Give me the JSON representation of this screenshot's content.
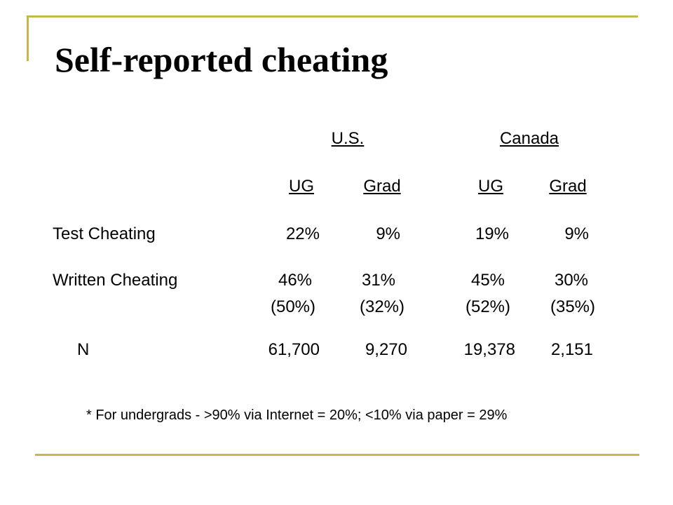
{
  "slide": {
    "title": "Self-reported cheating",
    "accent_color": "#c8b74a"
  },
  "table": {
    "groups": [
      "U.S.",
      "Canada"
    ],
    "subheaders": [
      "UG",
      "Grad",
      "UG",
      "Grad"
    ],
    "rows": [
      {
        "label": "Test Cheating",
        "values": [
          "22%",
          "9%",
          "19%",
          "9%"
        ]
      },
      {
        "label": "Written Cheating",
        "values": [
          "46%",
          "31%",
          "45%",
          "30%"
        ],
        "sub_values": [
          "(50%)",
          "(32%)",
          "(52%)",
          "(35%)"
        ]
      },
      {
        "label": "N",
        "values": [
          "61,700",
          "9,270",
          "19,378",
          "2,151"
        ]
      }
    ]
  },
  "footnote": "* For undergrads - >90% via Internet = 20%; <10% via paper = 29%"
}
